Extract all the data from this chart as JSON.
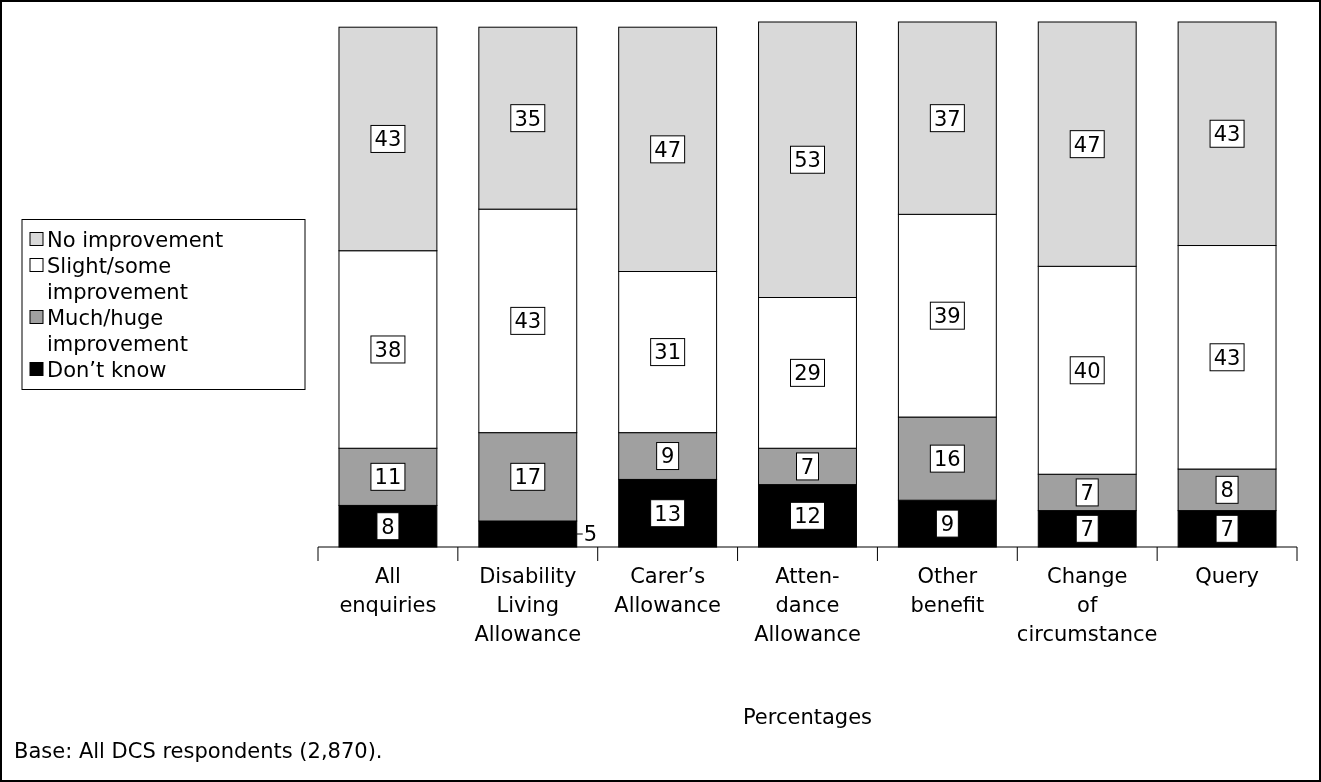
{
  "chart_data": {
    "type": "bar",
    "stacked": true,
    "categories": [
      "All\nenquiries",
      "Disability\nLiving\nAllowance",
      "Carer’s\nAllowance",
      "Atten-\ndance\nAllowance",
      "Other\nbenefit",
      "Change\nof\ncircumstance",
      "Query"
    ],
    "series": [
      {
        "name": "Don’t know",
        "color": "#000000",
        "values": [
          8,
          5,
          13,
          12,
          9,
          7,
          7
        ]
      },
      {
        "name": "Much/huge improvement",
        "color": "#a0a0a0",
        "values": [
          11,
          17,
          9,
          7,
          16,
          7,
          8
        ]
      },
      {
        "name": "Slight/some improvement",
        "color": "#ffffff",
        "values": [
          38,
          43,
          31,
          29,
          39,
          40,
          43
        ]
      },
      {
        "name": "No improvement",
        "color": "#d9d9d9",
        "values": [
          43,
          35,
          47,
          53,
          37,
          47,
          43
        ]
      }
    ],
    "ylim": [
      0,
      101
    ],
    "tick_labels": "x",
    "data_labels": true,
    "legend": "left",
    "xlabel": "Percentages",
    "annotations": [
      "Base: All DCS respondents (2,870)."
    ]
  }
}
